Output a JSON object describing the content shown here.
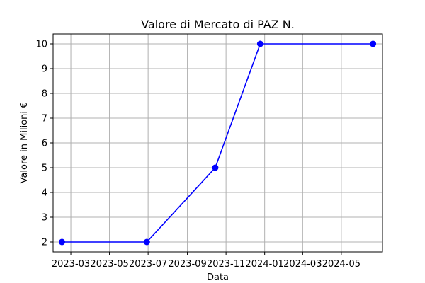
{
  "chart_data": {
    "type": "line",
    "title": "Valore di Mercato di PAZ N.",
    "xlabel": "Data",
    "ylabel": "Valore in Milioni €",
    "x": [
      "2023-02-15",
      "2023-06-29",
      "2023-10-15",
      "2023-12-25",
      "2024-06-20"
    ],
    "series": [
      {
        "values": [
          2,
          2,
          5,
          10,
          10
        ],
        "color": "#0000ff",
        "marker": "circle"
      }
    ],
    "xlim": [
      "2023-02-01",
      "2024-07-05"
    ],
    "ylim": [
      1.6,
      10.4
    ],
    "x_ticks": [
      {
        "date": "2023-03-01",
        "label": "2023-03"
      },
      {
        "date": "2023-05-01",
        "label": "2023-05"
      },
      {
        "date": "2023-07-01",
        "label": "2023-07"
      },
      {
        "date": "2023-09-01",
        "label": "2023-09"
      },
      {
        "date": "2023-11-01",
        "label": "2023-11"
      },
      {
        "date": "2024-01-01",
        "label": "2024-01"
      },
      {
        "date": "2024-03-01",
        "label": "2024-03"
      },
      {
        "date": "2024-05-01",
        "label": "2024-05"
      }
    ],
    "y_ticks": [
      2,
      3,
      4,
      5,
      6,
      7,
      8,
      9,
      10
    ],
    "grid": true,
    "legend": "none"
  }
}
